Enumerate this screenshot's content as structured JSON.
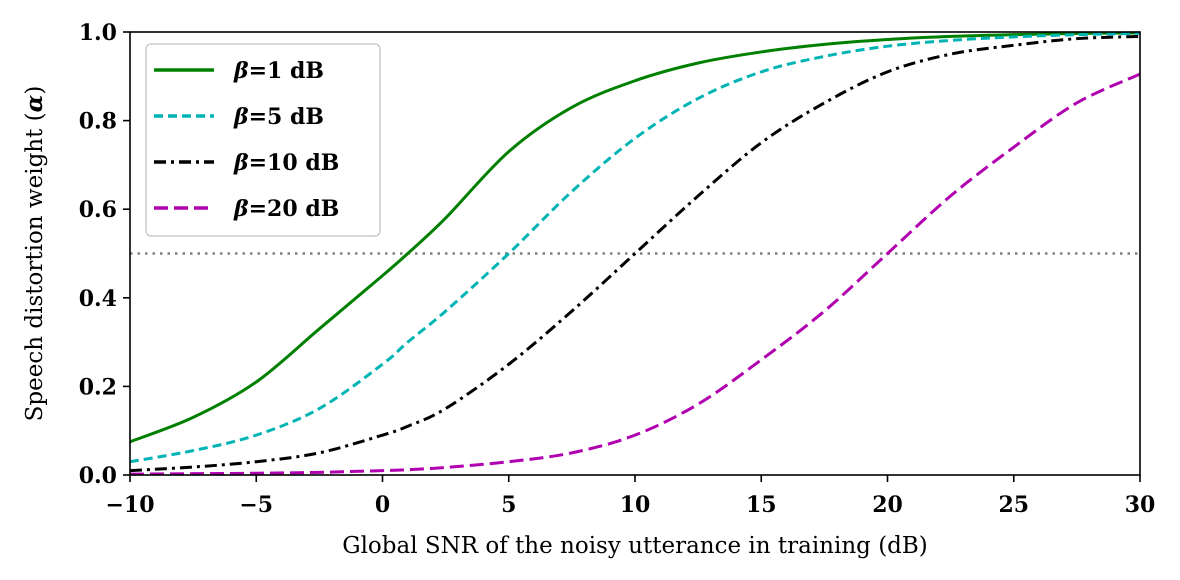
{
  "chart_data": {
    "type": "line",
    "xlabel": "Global SNR of the noisy utterance in training (dB)",
    "ylabel": "Speech distortion weight (",
    "ylabel_symbol": "α",
    "ylabel_suffix": ")",
    "xlim": [
      -10,
      30
    ],
    "ylim": [
      0,
      1.0
    ],
    "x_ticks": [
      -10,
      -5,
      0,
      5,
      10,
      15,
      20,
      25,
      30
    ],
    "x_tick_labels": [
      "−10",
      "−5",
      "0",
      "5",
      "10",
      "15",
      "20",
      "25",
      "30"
    ],
    "y_ticks": [
      0,
      0.2,
      0.4,
      0.6,
      0.8,
      1.0
    ],
    "y_tick_labels": [
      "0.0",
      "0.2",
      "0.4",
      "0.6",
      "0.8",
      "1.0"
    ],
    "grid": false,
    "legend_position": "top-left",
    "reference_line": {
      "y": 0.5,
      "style": "dotted",
      "color": "#808080"
    },
    "x": [
      -10,
      -7.5,
      -5,
      -2.5,
      0,
      1,
      2.5,
      5,
      7.5,
      10,
      12.5,
      15,
      17.5,
      20,
      22.5,
      25,
      27.5,
      30
    ],
    "series": [
      {
        "name_symbol": "β",
        "name_suffix": "=1 dB",
        "color": "#008000",
        "dash": "solid",
        "values": [
          0.075,
          0.13,
          0.21,
          0.33,
          0.45,
          0.5,
          0.58,
          0.73,
          0.83,
          0.89,
          0.93,
          0.955,
          0.972,
          0.983,
          0.99,
          0.994,
          0.997,
          0.998
        ]
      },
      {
        "name_symbol": "β",
        "name_suffix": "=5 dB",
        "color": "#00b4b4",
        "dash": "dashed",
        "values": [
          0.03,
          0.055,
          0.09,
          0.15,
          0.25,
          0.3,
          0.37,
          0.5,
          0.64,
          0.76,
          0.85,
          0.91,
          0.945,
          0.968,
          0.981,
          0.989,
          0.994,
          0.997
        ]
      },
      {
        "name_symbol": "β",
        "name_suffix": "=10 dB",
        "color": "#000000",
        "dash": "dashdot",
        "values": [
          0.01,
          0.018,
          0.03,
          0.05,
          0.09,
          0.11,
          0.15,
          0.25,
          0.37,
          0.5,
          0.63,
          0.75,
          0.84,
          0.91,
          0.95,
          0.97,
          0.985,
          0.99
        ]
      },
      {
        "name_symbol": "β",
        "name_suffix": "=20 dB",
        "color": "#b000b0",
        "dash": "longdash",
        "values": [
          0.002,
          0.003,
          0.004,
          0.006,
          0.01,
          0.012,
          0.017,
          0.03,
          0.05,
          0.09,
          0.16,
          0.26,
          0.37,
          0.5,
          0.63,
          0.74,
          0.84,
          0.905
        ]
      }
    ]
  }
}
